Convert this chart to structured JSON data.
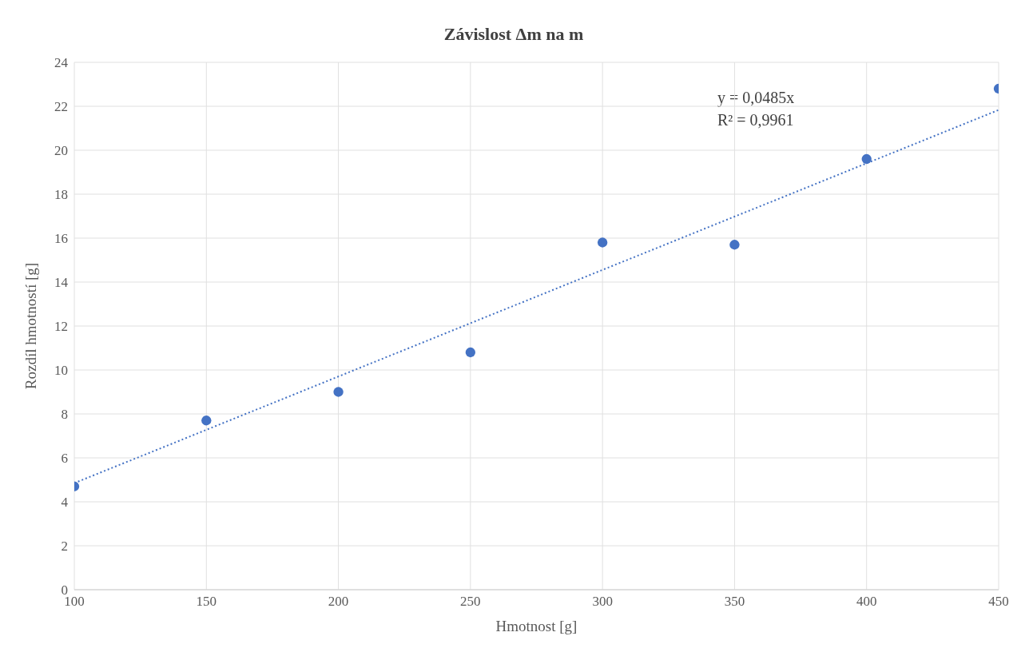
{
  "chart_data": {
    "type": "scatter",
    "title": "Závislost Δm na m",
    "xlabel": "Hmotnost [g]",
    "ylabel": "Rozdíl hmotností [g]",
    "x": [
      100,
      150,
      200,
      250,
      300,
      350,
      400,
      450
    ],
    "series": [
      {
        "color": "#4472c4",
        "values": [
          4.7,
          7.7,
          9.0,
          10.8,
          15.8,
          15.7,
          19.6,
          22.8
        ],
        "marker": "circle"
      },
      {
        "type": "line",
        "color": "#4472c4",
        "x": [
          100,
          450
        ],
        "values": [
          4.85,
          21.83
        ],
        "line_style": "dotted",
        "marker": "none"
      }
    ],
    "xlim": [
      100,
      450
    ],
    "xticks": [
      100,
      150,
      200,
      250,
      300,
      350,
      400,
      450
    ],
    "ylim": [
      0,
      24
    ],
    "yticks": [
      0,
      2,
      4,
      6,
      8,
      10,
      12,
      14,
      16,
      18,
      20,
      22,
      24
    ],
    "grid": true,
    "legend": false,
    "annotations": [
      "y = 0,0485x",
      "R² = 0,9961"
    ]
  }
}
